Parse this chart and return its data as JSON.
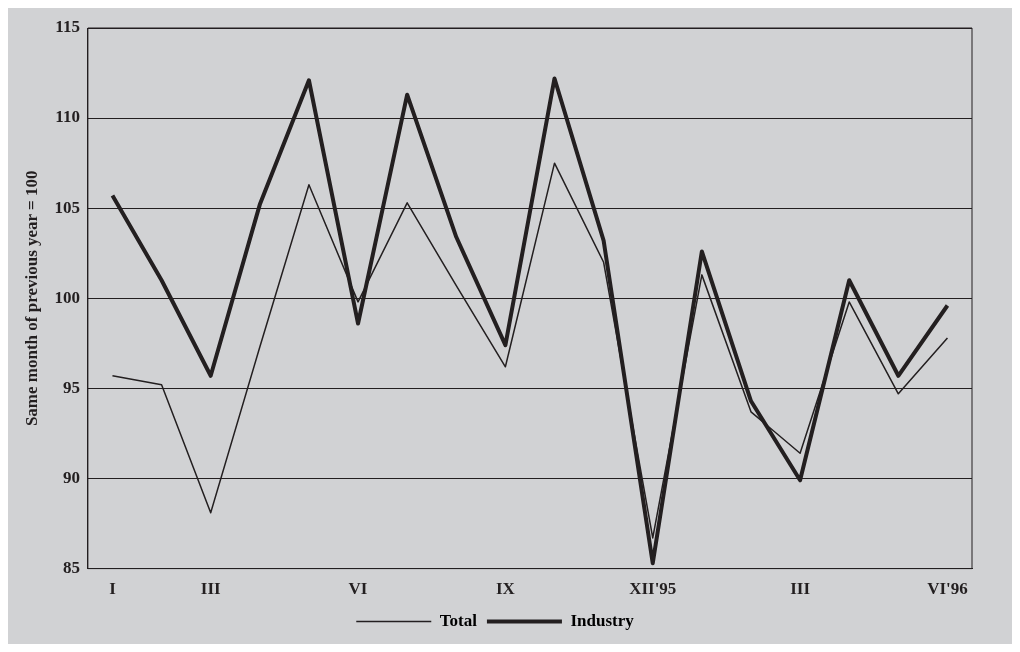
{
  "chart_data": {
    "type": "line",
    "ylabel": "Same month of previous year = 100",
    "categories": [
      "I",
      null,
      "III",
      null,
      null,
      "VI",
      null,
      null,
      "IX",
      null,
      null,
      "XII'95",
      null,
      null,
      "III",
      null,
      null,
      "VI'96"
    ],
    "series": [
      {
        "name": "Total",
        "color": "#231f20",
        "values": [
          95.7,
          95.2,
          88.1,
          97.3,
          106.3,
          99.8,
          105.3,
          100.7,
          96.2,
          107.5,
          102.0,
          86.7,
          101.3,
          93.7,
          91.4,
          99.8,
          94.7,
          97.8
        ]
      },
      {
        "name": "Industry",
        "color": "#231f20",
        "values": [
          105.7,
          101.0,
          95.7,
          105.2,
          112.1,
          98.6,
          111.3,
          103.4,
          97.4,
          112.2,
          103.2,
          85.3,
          102.6,
          94.3,
          89.9,
          101.0,
          95.7,
          99.6
        ]
      }
    ],
    "ylim": [
      85,
      115
    ],
    "yticks": [
      85,
      90,
      95,
      100,
      105,
      110,
      115
    ],
    "grid": "y",
    "legend": "bottom",
    "marker": "none",
    "line_style": "solid"
  }
}
